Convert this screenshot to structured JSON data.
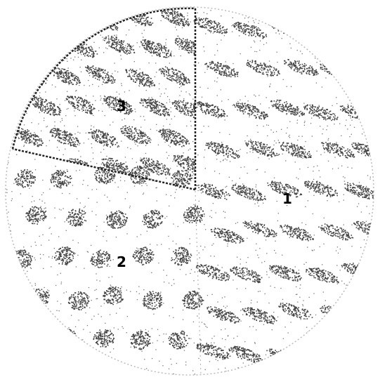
{
  "figure": {
    "description_labels": {
      "region_1": "1",
      "region_2": "2",
      "region_3": "3"
    },
    "colors": {
      "background": "#ffffff",
      "speckle": "#444444",
      "boundary": "#222222",
      "label": "#000000"
    }
  }
}
